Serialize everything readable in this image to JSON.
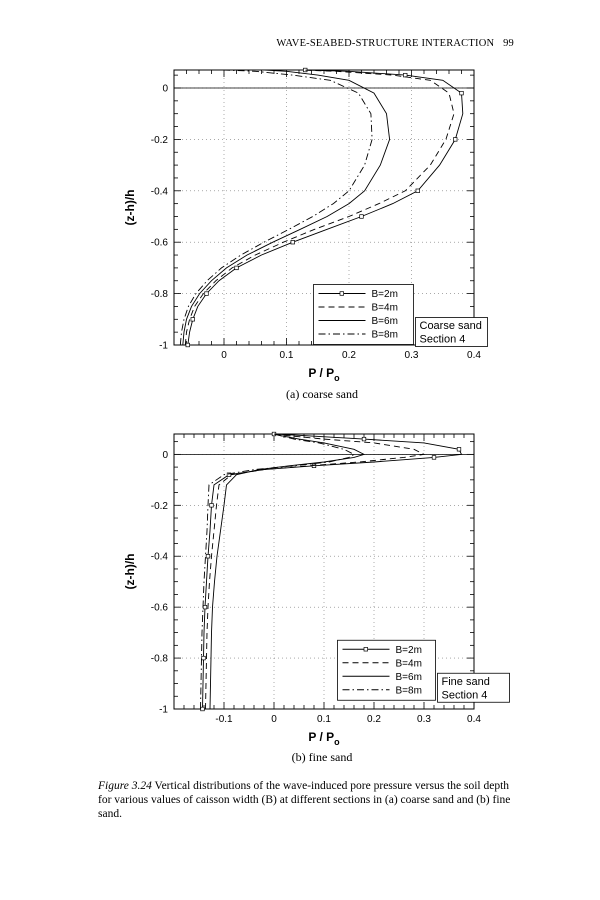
{
  "page_header": {
    "running_title": "WAVE-SEABED-STRUCTURE INTERACTION",
    "page_number": "99"
  },
  "figure_caption": {
    "label": "Figure 3.24",
    "text": "Vertical distributions of the wave-induced pore pressure versus the soil depth for various values of caisson width (B) at different sections in (a) coarse sand and (b) fine sand."
  },
  "chart_data": [
    {
      "type": "line",
      "caption": "(a) coarse sand",
      "xlabel": "P / P",
      "xlabel_sub": "o",
      "ylabel": "(z-h)/h",
      "xlim": [
        -0.08,
        0.4
      ],
      "ylim": [
        -1,
        0.07
      ],
      "xticks": [
        0,
        0.1,
        0.2,
        0.3,
        0.4
      ],
      "xtick_labels": [
        "0",
        "0.1",
        "0.2",
        "0.3",
        "0.4"
      ],
      "yticks": [
        0,
        -0.2,
        -0.4,
        -0.6,
        -0.8,
        -1
      ],
      "ytick_labels": [
        "0",
        "-0.2",
        "-0.4",
        "-0.6",
        "-0.8",
        "-1"
      ],
      "grid": true,
      "legend_position": "bottom-right",
      "legend_note": [
        "Coarse sand",
        "Section 4"
      ],
      "series": [
        {
          "name": "B=2m",
          "style": "solid-square",
          "x": [
            -0.058,
            -0.055,
            -0.05,
            -0.042,
            -0.028,
            -0.008,
            0.02,
            0.06,
            0.11,
            0.165,
            0.22,
            0.27,
            0.31,
            0.345,
            0.37,
            0.382,
            0.38,
            0.35,
            0.29,
            0.2,
            0.13
          ],
          "y": [
            -1,
            -0.95,
            -0.9,
            -0.85,
            -0.8,
            -0.75,
            -0.7,
            -0.65,
            -0.6,
            -0.55,
            -0.5,
            -0.45,
            -0.4,
            -0.3,
            -0.2,
            -0.1,
            -0.02,
            0.03,
            0.05,
            0.065,
            0.07
          ]
        },
        {
          "name": "B=4m",
          "style": "dashed",
          "x": [
            -0.062,
            -0.06,
            -0.055,
            -0.047,
            -0.033,
            -0.013,
            0.013,
            0.05,
            0.095,
            0.145,
            0.2,
            0.248,
            0.29,
            0.33,
            0.355,
            0.368,
            0.36,
            0.33,
            0.27,
            0.18,
            0.12
          ],
          "y": [
            -1,
            -0.95,
            -0.9,
            -0.85,
            -0.8,
            -0.75,
            -0.7,
            -0.65,
            -0.6,
            -0.55,
            -0.5,
            -0.45,
            -0.4,
            -0.3,
            -0.2,
            -0.1,
            -0.02,
            0.03,
            0.05,
            0.065,
            0.07
          ]
        },
        {
          "name": "B=6m",
          "style": "solid",
          "x": [
            -0.066,
            -0.064,
            -0.06,
            -0.052,
            -0.039,
            -0.02,
            0.004,
            0.037,
            0.078,
            0.122,
            0.165,
            0.2,
            0.225,
            0.25,
            0.265,
            0.26,
            0.24,
            0.2,
            0.15,
            0.1,
            0.065
          ],
          "y": [
            -1,
            -0.95,
            -0.9,
            -0.85,
            -0.8,
            -0.75,
            -0.7,
            -0.65,
            -0.6,
            -0.55,
            -0.5,
            -0.45,
            -0.4,
            -0.3,
            -0.2,
            -0.1,
            -0.02,
            0.03,
            0.05,
            0.065,
            0.07
          ]
        },
        {
          "name": "B=8m",
          "style": "dash-dot",
          "x": [
            -0.07,
            -0.068,
            -0.064,
            -0.057,
            -0.045,
            -0.027,
            -0.004,
            0.027,
            0.064,
            0.104,
            0.142,
            0.175,
            0.2,
            0.225,
            0.237,
            0.235,
            0.215,
            0.17,
            0.11,
            0.05,
            0.0
          ],
          "y": [
            -1,
            -0.95,
            -0.9,
            -0.85,
            -0.8,
            -0.75,
            -0.7,
            -0.65,
            -0.6,
            -0.55,
            -0.5,
            -0.45,
            -0.4,
            -0.3,
            -0.2,
            -0.1,
            -0.02,
            0.03,
            0.05,
            0.065,
            0.07
          ]
        }
      ]
    },
    {
      "type": "line",
      "caption": "(b) fine sand",
      "xlabel": "P / P",
      "xlabel_sub": "o",
      "ylabel": "(z-h)/h",
      "xlim": [
        -0.2,
        0.4
      ],
      "ylim": [
        -1,
        0.08
      ],
      "xticks": [
        -0.1,
        0,
        0.1,
        0.2,
        0.3,
        0.4
      ],
      "xtick_labels": [
        "-0.1",
        "0",
        "0.1",
        "0.2",
        "0.3",
        "0.4"
      ],
      "yticks": [
        0,
        -0.2,
        -0.4,
        -0.6,
        -0.8,
        -1
      ],
      "ytick_labels": [
        "0",
        "-0.2",
        "-0.4",
        "-0.6",
        "-0.8",
        "-1"
      ],
      "grid": true,
      "legend_position": "bottom-right",
      "legend_note": [
        "Fine sand",
        "Section 4"
      ],
      "series": [
        {
          "name": "B=2m",
          "style": "solid-square",
          "x": [
            -0.143,
            -0.142,
            -0.141,
            -0.14,
            -0.138,
            -0.135,
            -0.132,
            -0.128,
            -0.125,
            -0.12,
            -0.09,
            -0.02,
            0.08,
            0.2,
            0.32,
            0.375,
            0.37,
            0.3,
            0.18,
            0.05,
            0.0
          ],
          "y": [
            -1,
            -0.9,
            -0.8,
            -0.7,
            -0.6,
            -0.5,
            -0.4,
            -0.3,
            -0.2,
            -0.12,
            -0.08,
            -0.06,
            -0.045,
            -0.03,
            -0.012,
            0.0,
            0.02,
            0.045,
            0.06,
            0.075,
            0.08
          ]
        },
        {
          "name": "B=4m",
          "style": "dashed",
          "x": [
            -0.137,
            -0.136,
            -0.135,
            -0.134,
            -0.132,
            -0.129,
            -0.125,
            -0.12,
            -0.115,
            -0.11,
            -0.085,
            -0.02,
            0.07,
            0.17,
            0.26,
            0.3,
            0.28,
            0.2,
            0.1,
            0.02,
            0.0
          ],
          "y": [
            -1,
            -0.9,
            -0.8,
            -0.7,
            -0.6,
            -0.5,
            -0.4,
            -0.3,
            -0.2,
            -0.12,
            -0.08,
            -0.06,
            -0.045,
            -0.03,
            -0.012,
            0.0,
            0.02,
            0.045,
            0.06,
            0.075,
            0.08
          ]
        },
        {
          "name": "B=6m",
          "style": "solid",
          "x": [
            -0.128,
            -0.127,
            -0.126,
            -0.125,
            -0.123,
            -0.119,
            -0.114,
            -0.107,
            -0.1,
            -0.095,
            -0.075,
            -0.03,
            0.03,
            0.1,
            0.16,
            0.18,
            0.16,
            0.1,
            0.05,
            0.01,
            0.0
          ],
          "y": [
            -1,
            -0.9,
            -0.8,
            -0.7,
            -0.6,
            -0.5,
            -0.4,
            -0.3,
            -0.2,
            -0.12,
            -0.08,
            -0.06,
            -0.045,
            -0.03,
            -0.012,
            0.0,
            0.02,
            0.045,
            0.06,
            0.075,
            0.08
          ]
        },
        {
          "name": "B=8m",
          "style": "dash-dot",
          "x": [
            -0.147,
            -0.146,
            -0.145,
            -0.144,
            -0.142,
            -0.14,
            -0.137,
            -0.134,
            -0.132,
            -0.13,
            -0.1,
            -0.04,
            0.04,
            0.11,
            0.15,
            0.16,
            0.14,
            0.09,
            0.04,
            0.01,
            0.0
          ],
          "y": [
            -1,
            -0.9,
            -0.8,
            -0.7,
            -0.6,
            -0.5,
            -0.4,
            -0.3,
            -0.2,
            -0.12,
            -0.08,
            -0.06,
            -0.045,
            -0.03,
            -0.012,
            0.0,
            0.02,
            0.045,
            0.06,
            0.075,
            0.08
          ]
        }
      ]
    }
  ]
}
